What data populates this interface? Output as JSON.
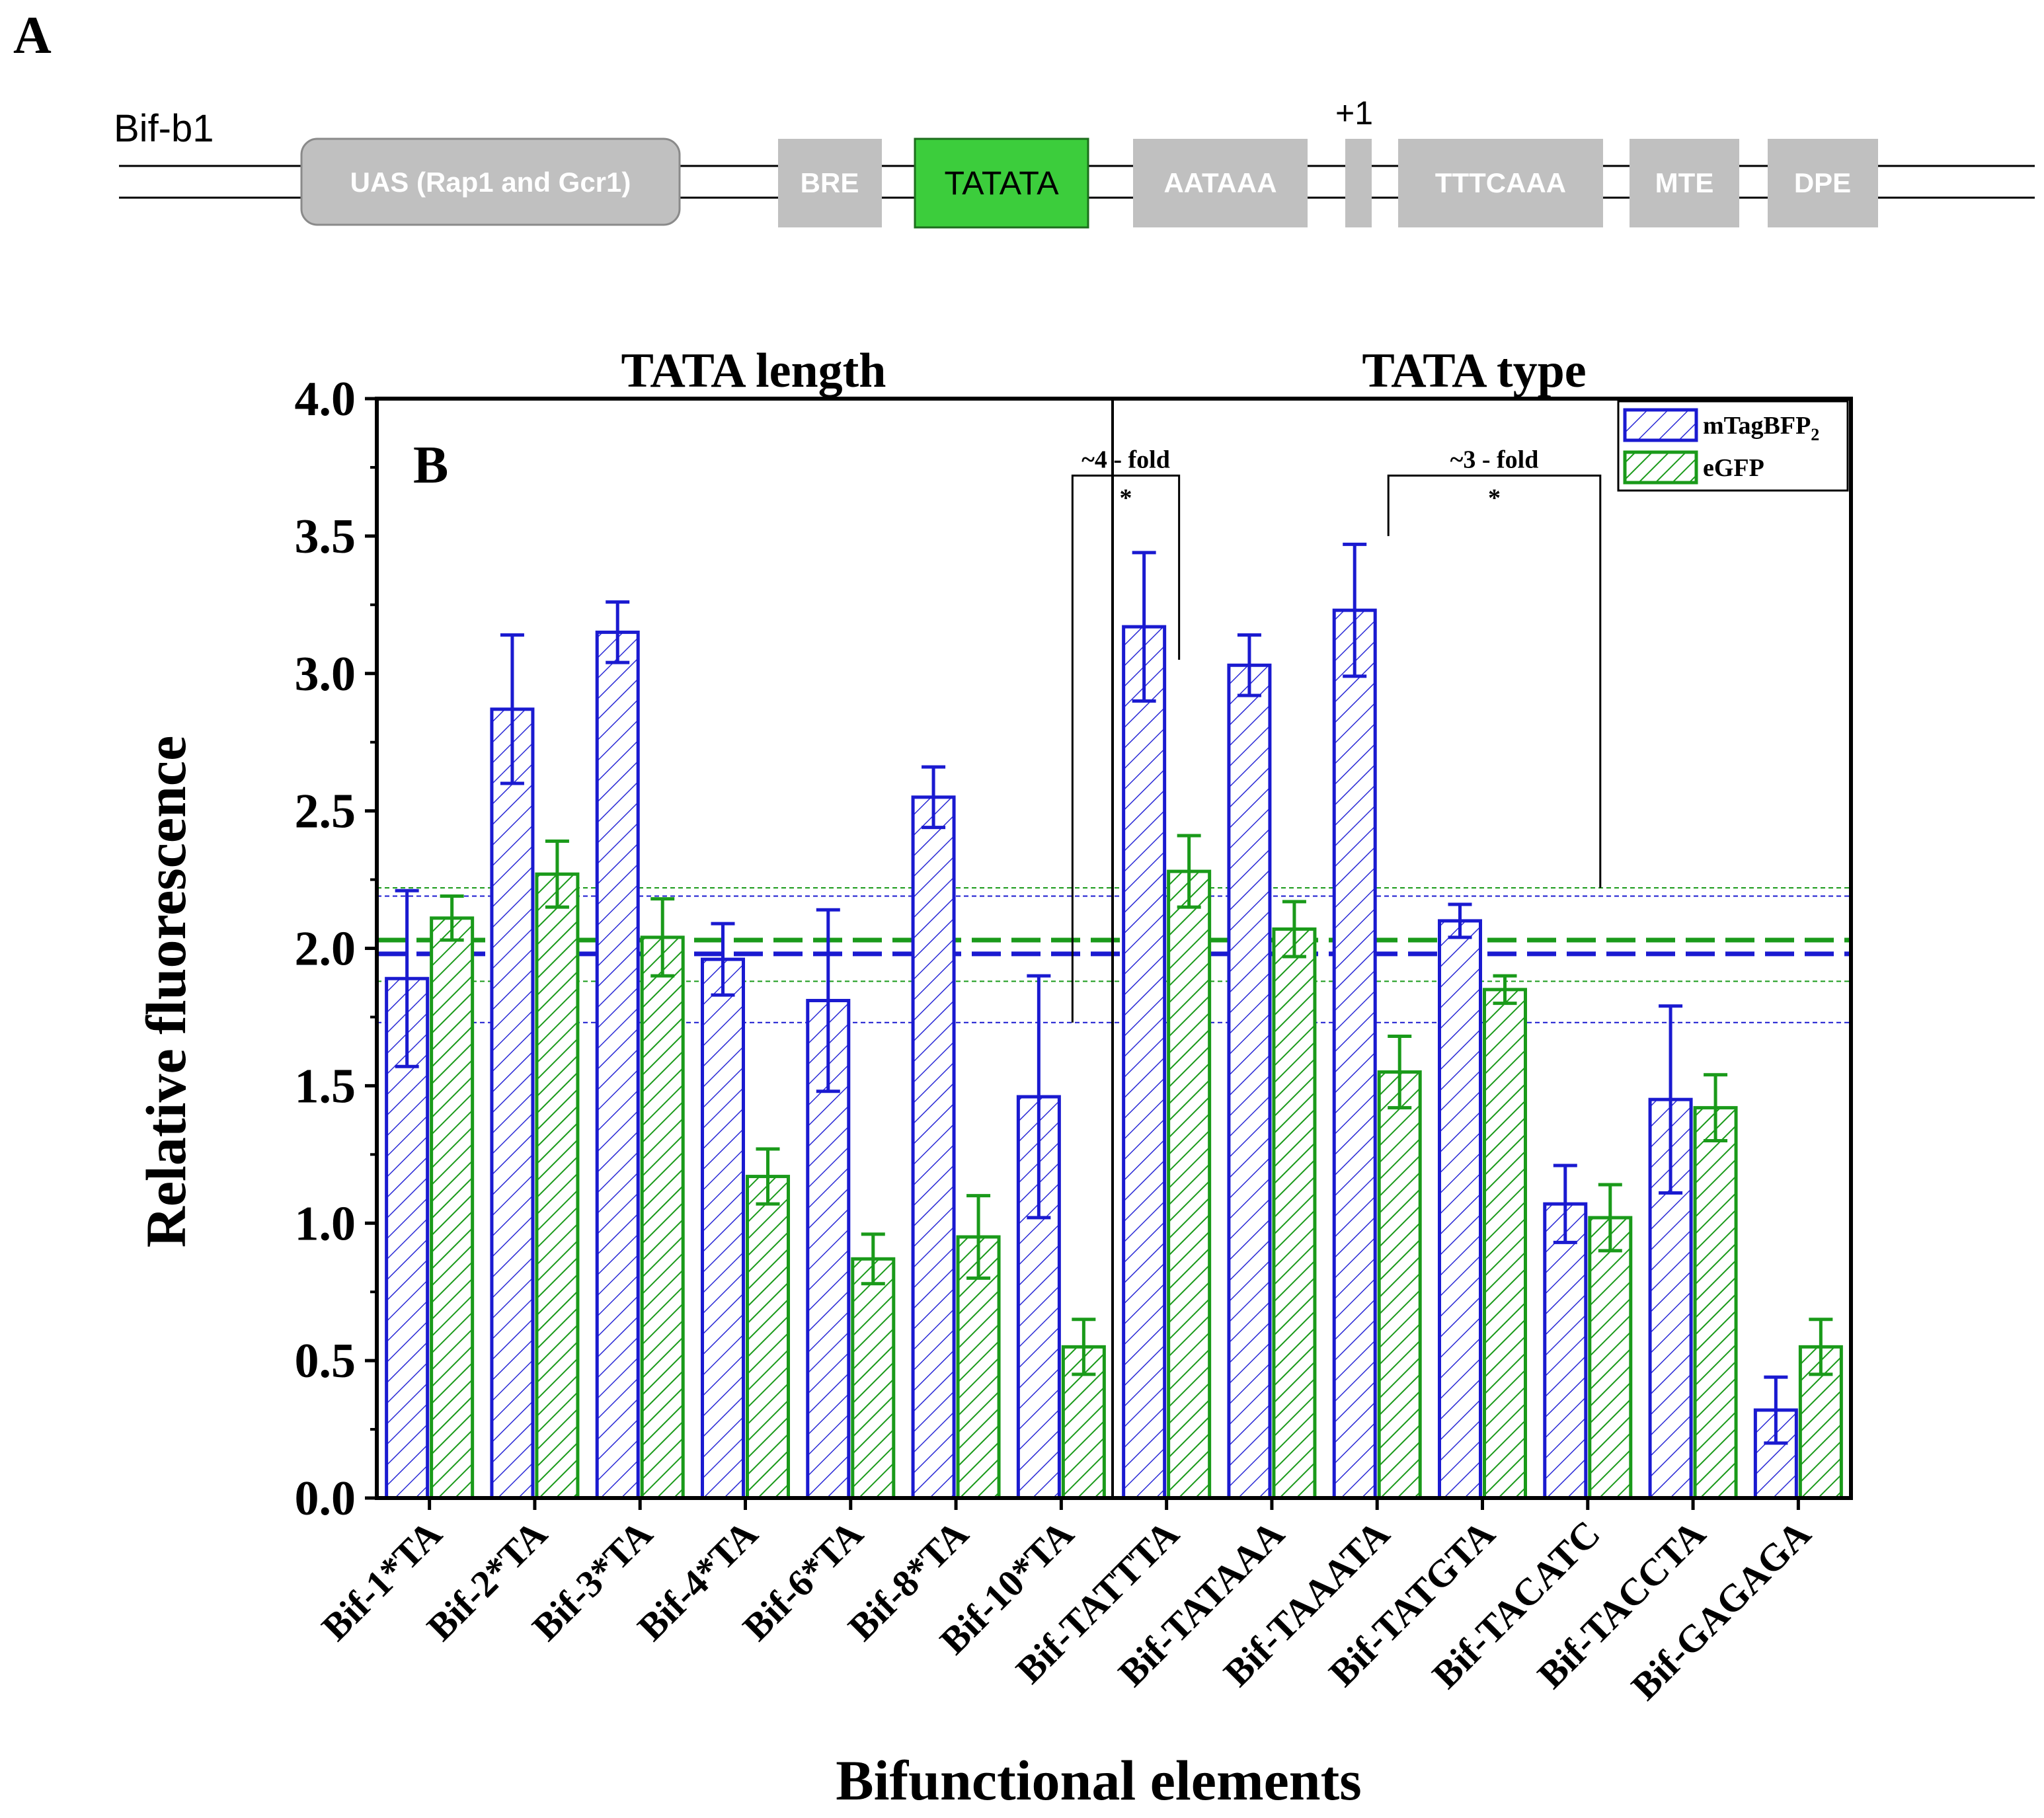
{
  "panel_a": {
    "letter": "A",
    "construct_label": "Bif-b1",
    "tss_label": "+1",
    "elements": [
      {
        "id": "uas",
        "label": "UAS (Rap1 and Gcr1)"
      },
      {
        "id": "bre",
        "label": "BRE"
      },
      {
        "id": "tata",
        "label": "TATATA"
      },
      {
        "id": "aataaa",
        "label": "AATAAA"
      },
      {
        "id": "tss",
        "label": ""
      },
      {
        "id": "tttcaaa",
        "label": "TTTCAAA"
      },
      {
        "id": "mte",
        "label": "MTE"
      },
      {
        "id": "dpe",
        "label": "DPE"
      }
    ],
    "colors": {
      "box": "#c0c0c0",
      "uas": "#c0c0c0",
      "tata": "#3ccd3c"
    }
  },
  "chart_data": {
    "type": "bar",
    "panel_letter": "B",
    "section_titles": [
      "TATA length",
      "TATA type"
    ],
    "categories": [
      "Bif-1*TA",
      "Bif-2*TA",
      "Bif-3*TA",
      "Bif-4*TA",
      "Bif-6*TA",
      "Bif-8*TA",
      "Bif-10*TA",
      "Bif-TATTTA",
      "Bif-TATAAA",
      "Bif-TAAATA",
      "Bif-TATGTA",
      "Bif-TACATC",
      "Bif-TACCTA",
      "Bif-GAGAGA"
    ],
    "series": [
      {
        "name": "mTagBFP",
        "name_subscript": "2",
        "color": "#1a1ad0",
        "values": [
          1.89,
          2.87,
          3.15,
          1.96,
          1.81,
          2.55,
          1.46,
          3.17,
          3.03,
          3.23,
          2.1,
          1.07,
          1.45,
          0.32
        ],
        "errors": [
          0.32,
          0.27,
          0.11,
          0.13,
          0.33,
          0.11,
          0.44,
          0.27,
          0.11,
          0.24,
          0.06,
          0.14,
          0.34,
          0.12
        ]
      },
      {
        "name": "eGFP",
        "name_subscript": "",
        "color": "#1a9a1a",
        "values": [
          2.11,
          2.27,
          2.04,
          1.17,
          0.87,
          0.95,
          0.55,
          2.28,
          2.07,
          1.55,
          1.85,
          1.02,
          1.42,
          0.55
        ],
        "errors": [
          0.08,
          0.12,
          0.14,
          0.1,
          0.09,
          0.15,
          0.1,
          0.13,
          0.1,
          0.13,
          0.05,
          0.12,
          0.12,
          0.1
        ]
      }
    ],
    "reference_lines": [
      {
        "series": "mTagBFP",
        "mean": 1.98,
        "lower": 1.73,
        "upper": 2.19
      },
      {
        "series": "eGFP",
        "mean": 2.03,
        "lower": 1.88,
        "upper": 2.22
      }
    ],
    "annotations": [
      {
        "text": "~4 - fold",
        "star": "*",
        "from_category": "Bif-10*TA",
        "to_category": "Bif-TATTTA",
        "from_y": 1.73,
        "to_y": 3.05,
        "bracket_y": 3.72
      },
      {
        "text": "~3 - fold",
        "star": "*",
        "from_category": "Bif-TAAATA",
        "to_category": "Bif-TACATC",
        "from_y": 3.5,
        "to_y": 2.22,
        "bracket_y": 3.72
      }
    ],
    "divider_after_category": "Bif-10*TA",
    "xlabel": "Bifunctional elements",
    "ylabel": "Relative fluorescence",
    "ylim": [
      0,
      4.0
    ],
    "yticks": [
      "0.0",
      "0.5",
      "1.0",
      "1.5",
      "2.0",
      "2.5",
      "3.0",
      "3.5",
      "4.0"
    ],
    "legend_position": "top-right"
  }
}
